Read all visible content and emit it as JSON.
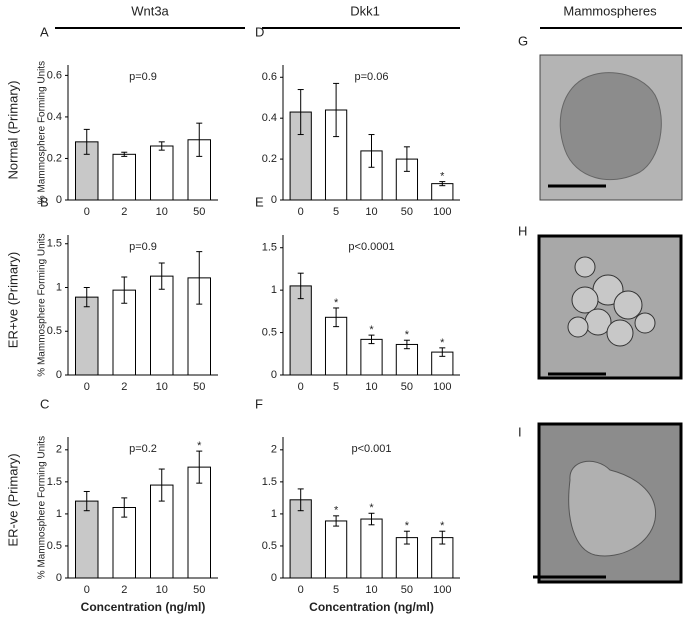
{
  "figure": {
    "columns": [
      "Wnt3a",
      "Dkk1",
      "Mammospheres"
    ],
    "rows": [
      "Normal (Primary)",
      "ER+ve (Primary)",
      "ER-ve (Primary)"
    ],
    "image_panels": [
      "G",
      "H",
      "I"
    ]
  },
  "chart_data": [
    {
      "type": "bar",
      "panel": "A",
      "annotation": "p=0.9",
      "ylabel": "% Mammosphere Forming Units",
      "categories": [
        "0",
        "2",
        "10",
        "50"
      ],
      "values": [
        0.28,
        0.22,
        0.26,
        0.29
      ],
      "errors": [
        0.06,
        0.01,
        0.02,
        0.08
      ],
      "colors": [
        "#c8c8c8",
        "#ffffff",
        "#ffffff",
        "#ffffff"
      ],
      "significance": [
        null,
        null,
        null,
        null
      ],
      "ylim": [
        0,
        0.65
      ],
      "yticks": [
        0,
        0.2,
        0.4,
        0.6
      ]
    },
    {
      "type": "bar",
      "panel": "B",
      "annotation": "p=0.9",
      "ylabel": "% Mammosphere Forming Units",
      "categories": [
        "0",
        "2",
        "10",
        "50"
      ],
      "values": [
        0.89,
        0.97,
        1.13,
        1.11
      ],
      "errors": [
        0.11,
        0.15,
        0.15,
        0.3
      ],
      "colors": [
        "#c8c8c8",
        "#ffffff",
        "#ffffff",
        "#ffffff"
      ],
      "significance": [
        null,
        null,
        null,
        null
      ],
      "ylim": [
        0,
        1.6
      ],
      "yticks": [
        0,
        0.5,
        1,
        1.5
      ]
    },
    {
      "type": "bar",
      "panel": "C",
      "annotation": "p=0.2",
      "ylabel": "% Mammosphere Forming Units",
      "xlabel": "Concentration (ng/ml)",
      "categories": [
        "0",
        "2",
        "10",
        "50"
      ],
      "values": [
        1.2,
        1.1,
        1.45,
        1.73
      ],
      "errors": [
        0.15,
        0.15,
        0.25,
        0.25
      ],
      "colors": [
        "#c8c8c8",
        "#ffffff",
        "#ffffff",
        "#ffffff"
      ],
      "significance": [
        null,
        null,
        null,
        "*"
      ],
      "ylim": [
        0,
        2.2
      ],
      "yticks": [
        0,
        0.5,
        1,
        1.5,
        2
      ]
    },
    {
      "type": "bar",
      "panel": "D",
      "annotation": "p=0.06",
      "categories": [
        "0",
        "5",
        "10",
        "50",
        "100"
      ],
      "values": [
        0.43,
        0.44,
        0.24,
        0.2,
        0.08
      ],
      "errors": [
        0.11,
        0.13,
        0.08,
        0.06,
        0.01
      ],
      "colors": [
        "#c8c8c8",
        "#ffffff",
        "#ffffff",
        "#ffffff",
        "#ffffff"
      ],
      "significance": [
        null,
        null,
        null,
        null,
        "*"
      ],
      "ylim": [
        0,
        0.66
      ],
      "yticks": [
        0,
        0.2,
        0.4,
        0.6
      ]
    },
    {
      "type": "bar",
      "panel": "E",
      "annotation": "p<0.0001",
      "categories": [
        "0",
        "5",
        "10",
        "50",
        "100"
      ],
      "values": [
        1.05,
        0.68,
        0.42,
        0.36,
        0.27
      ],
      "errors": [
        0.15,
        0.11,
        0.05,
        0.05,
        0.05
      ],
      "colors": [
        "#c8c8c8",
        "#ffffff",
        "#ffffff",
        "#ffffff",
        "#ffffff"
      ],
      "significance": [
        null,
        "*",
        "*",
        "*",
        "*"
      ],
      "ylim": [
        0,
        1.65
      ],
      "yticks": [
        0,
        0.5,
        1,
        1.5
      ]
    },
    {
      "type": "bar",
      "panel": "F",
      "annotation": "p<0.001",
      "xlabel": "Concentration (ng/ml)",
      "categories": [
        "0",
        "5",
        "10",
        "50",
        "100"
      ],
      "values": [
        1.22,
        0.89,
        0.92,
        0.63,
        0.63
      ],
      "errors": [
        0.17,
        0.08,
        0.09,
        0.1,
        0.1
      ],
      "colors": [
        "#c8c8c8",
        "#ffffff",
        "#ffffff",
        "#ffffff",
        "#ffffff"
      ],
      "significance": [
        null,
        "*",
        "*",
        "*",
        "*"
      ],
      "ylim": [
        0,
        2.2
      ],
      "yticks": [
        0,
        0.5,
        1,
        1.5,
        2
      ]
    }
  ]
}
